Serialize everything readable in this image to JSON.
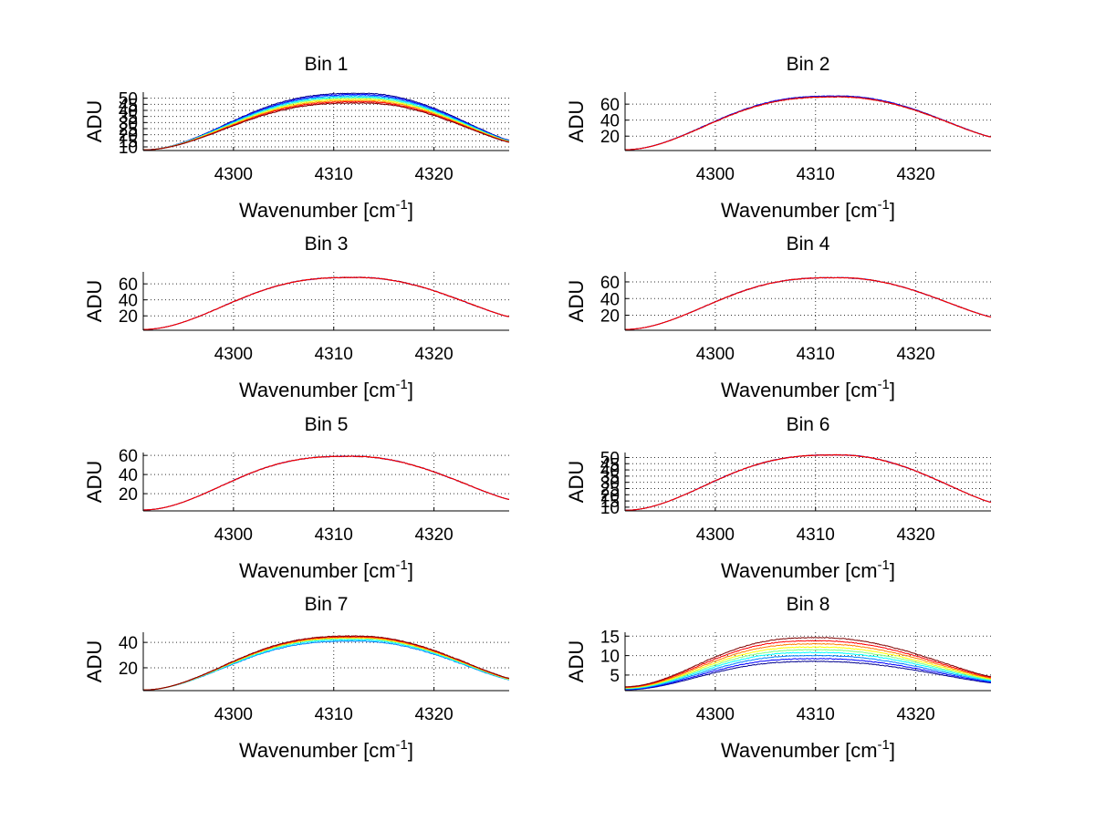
{
  "chart_data": [
    {
      "type": "line",
      "title": "Bin 1",
      "xlabel": "Wavenumber [cm",
      "xlabel_sup": "-1",
      "xlabel_end": "]",
      "ylabel": "ADU",
      "xlim": [
        4291,
        4327.5
      ],
      "ylim": [
        7,
        55
      ],
      "xticks": [
        "4300",
        "4310",
        "4320"
      ],
      "yticks": [
        "10",
        "15",
        "20",
        "25",
        "30",
        "35",
        "40",
        "45",
        "50"
      ],
      "grid": true,
      "series_colors": [
        "#00008f",
        "#0000ff",
        "#0080ff",
        "#00ffff",
        "#80ff80",
        "#ffff00",
        "#ff8000",
        "#ff0000",
        "#800000"
      ],
      "series": [
        {
          "peak_x": 4313.0,
          "peak_y": 54,
          "base_y": 7.5,
          "right_y": 15.5
        },
        {
          "peak_x": 4313.0,
          "peak_y": 53,
          "base_y": 7.5,
          "right_y": 15.2
        },
        {
          "peak_x": 4313.0,
          "peak_y": 52,
          "base_y": 7.5,
          "right_y": 15.0
        },
        {
          "peak_x": 4313.0,
          "peak_y": 51,
          "base_y": 7.5,
          "right_y": 14.8
        },
        {
          "peak_x": 4313.0,
          "peak_y": 50,
          "base_y": 7.5,
          "right_y": 14.6
        },
        {
          "peak_x": 4313.0,
          "peak_y": 49,
          "base_y": 7.5,
          "right_y": 14.4
        },
        {
          "peak_x": 4313.0,
          "peak_y": 48,
          "base_y": 7.5,
          "right_y": 14.2
        },
        {
          "peak_x": 4313.0,
          "peak_y": 47,
          "base_y": 7.5,
          "right_y": 14.0
        },
        {
          "peak_x": 4313.0,
          "peak_y": 46,
          "base_y": 7.5,
          "right_y": 13.8
        }
      ]
    },
    {
      "type": "line",
      "title": "Bin 2",
      "xlabel": "Wavenumber [cm",
      "xlabel_sup": "-1",
      "xlabel_end": "]",
      "ylabel": "ADU",
      "xlim": [
        4291,
        4327.5
      ],
      "ylim": [
        2,
        75
      ],
      "xticks": [
        "4300",
        "4310",
        "4320"
      ],
      "yticks": [
        "20",
        "40",
        "60"
      ],
      "grid": true,
      "series_colors": [
        "#00008f",
        "#0000ff",
        "#800000",
        "#ff0000"
      ],
      "series": [
        {
          "peak_x": 4312.5,
          "peak_y": 70,
          "base_y": 3,
          "right_y": 19
        },
        {
          "peak_x": 4312.5,
          "peak_y": 70,
          "base_y": 3,
          "right_y": 19
        },
        {
          "peak_x": 4312.5,
          "peak_y": 69,
          "base_y": 3,
          "right_y": 19
        },
        {
          "peak_x": 4312.5,
          "peak_y": 69,
          "base_y": 3,
          "right_y": 19
        }
      ]
    },
    {
      "type": "line",
      "title": "Bin 3",
      "xlabel": "Wavenumber [cm",
      "xlabel_sup": "-1",
      "xlabel_end": "]",
      "ylabel": "ADU",
      "xlim": [
        4291,
        4327.5
      ],
      "ylim": [
        2,
        75
      ],
      "xticks": [
        "4300",
        "4310",
        "4320"
      ],
      "yticks": [
        "20",
        "40",
        "60"
      ],
      "grid": true,
      "series_colors": [
        "#0000ff",
        "#800000",
        "#ff0000"
      ],
      "series": [
        {
          "peak_x": 4312.5,
          "peak_y": 68,
          "base_y": 3,
          "right_y": 19
        },
        {
          "peak_x": 4312.5,
          "peak_y": 68,
          "base_y": 3,
          "right_y": 19
        },
        {
          "peak_x": 4312.5,
          "peak_y": 68,
          "base_y": 3,
          "right_y": 19
        }
      ]
    },
    {
      "type": "line",
      "title": "Bin 4",
      "xlabel": "Wavenumber [cm",
      "xlabel_sup": "-1",
      "xlabel_end": "]",
      "ylabel": "ADU",
      "xlim": [
        4291,
        4327.5
      ],
      "ylim": [
        2,
        72
      ],
      "xticks": [
        "4300",
        "4310",
        "4320"
      ],
      "yticks": [
        "20",
        "40",
        "60"
      ],
      "grid": true,
      "series_colors": [
        "#0000ff",
        "#800000",
        "#ff0000"
      ],
      "series": [
        {
          "peak_x": 4312.5,
          "peak_y": 65,
          "base_y": 3,
          "right_y": 18
        },
        {
          "peak_x": 4312.5,
          "peak_y": 65,
          "base_y": 3,
          "right_y": 18
        },
        {
          "peak_x": 4312.5,
          "peak_y": 65,
          "base_y": 3,
          "right_y": 18
        }
      ]
    },
    {
      "type": "line",
      "title": "Bin 5",
      "xlabel": "Wavenumber [cm",
      "xlabel_sup": "-1",
      "xlabel_end": "]",
      "ylabel": "ADU",
      "xlim": [
        4291,
        4327.5
      ],
      "ylim": [
        2,
        63
      ],
      "xticks": [
        "4300",
        "4310",
        "4320"
      ],
      "yticks": [
        "20",
        "40",
        "60"
      ],
      "grid": true,
      "series_colors": [
        "#0000ff",
        "#800000",
        "#ff0000"
      ],
      "series": [
        {
          "peak_x": 4312.0,
          "peak_y": 59,
          "base_y": 3,
          "right_y": 14
        },
        {
          "peak_x": 4312.0,
          "peak_y": 59,
          "base_y": 3,
          "right_y": 14
        },
        {
          "peak_x": 4312.0,
          "peak_y": 59,
          "base_y": 3,
          "right_y": 14
        }
      ]
    },
    {
      "type": "line",
      "title": "Bin 6",
      "xlabel": "Wavenumber [cm",
      "xlabel_sup": "-1",
      "xlabel_end": "]",
      "ylabel": "ADU",
      "xlim": [
        4291,
        4327.5
      ],
      "ylim": [
        7,
        54
      ],
      "xticks": [
        "4300",
        "4310",
        "4320"
      ],
      "yticks": [
        "10",
        "15",
        "20",
        "25",
        "30",
        "35",
        "40",
        "45",
        "50"
      ],
      "grid": true,
      "series_colors": [
        "#0000ff",
        "#800000",
        "#ff0000"
      ],
      "series": [
        {
          "peak_x": 4312.5,
          "peak_y": 52,
          "base_y": 7.5,
          "right_y": 14
        },
        {
          "peak_x": 4312.5,
          "peak_y": 52,
          "base_y": 7.5,
          "right_y": 14
        },
        {
          "peak_x": 4312.5,
          "peak_y": 52,
          "base_y": 7.5,
          "right_y": 14
        }
      ]
    },
    {
      "type": "line",
      "title": "Bin 7",
      "xlabel": "Wavenumber [cm",
      "xlabel_sup": "-1",
      "xlabel_end": "]",
      "ylabel": "ADU",
      "xlim": [
        4291,
        4327.5
      ],
      "ylim": [
        2,
        48
      ],
      "xticks": [
        "4300",
        "4310",
        "4320"
      ],
      "yticks": [
        "20",
        "40"
      ],
      "grid": true,
      "series_colors": [
        "#0080ff",
        "#00ffff",
        "#80ff80",
        "#ffff00",
        "#ff8000",
        "#ff0000",
        "#800000"
      ],
      "series": [
        {
          "peak_x": 4312.5,
          "peak_y": 41,
          "base_y": 2.5,
          "right_y": 10.5
        },
        {
          "peak_x": 4312.5,
          "peak_y": 42,
          "base_y": 2.5,
          "right_y": 10.8
        },
        {
          "peak_x": 4312.5,
          "peak_y": 43,
          "base_y": 2.5,
          "right_y": 11.0
        },
        {
          "peak_x": 4312.5,
          "peak_y": 43.5,
          "base_y": 2.5,
          "right_y": 11.2
        },
        {
          "peak_x": 4312.5,
          "peak_y": 44,
          "base_y": 2.5,
          "right_y": 11.4
        },
        {
          "peak_x": 4312.5,
          "peak_y": 44.5,
          "base_y": 2.5,
          "right_y": 11.6
        },
        {
          "peak_x": 4312.5,
          "peak_y": 45,
          "base_y": 2.5,
          "right_y": 11.8
        }
      ]
    },
    {
      "type": "line",
      "title": "Bin 8",
      "xlabel": "Wavenumber [cm",
      "xlabel_sup": "-1",
      "xlabel_end": "]",
      "ylabel": "ADU",
      "xlim": [
        4291,
        4327.5
      ],
      "ylim": [
        1,
        16
      ],
      "xticks": [
        "4300",
        "4310",
        "4320"
      ],
      "yticks": [
        "5",
        "10",
        "15"
      ],
      "grid": true,
      "series_colors": [
        "#00008f",
        "#0000ff",
        "#0080ff",
        "#00ffff",
        "#80ff80",
        "#ffff00",
        "#ff8000",
        "#ff0000",
        "#800000"
      ],
      "series": [
        {
          "peak_x": 4310.5,
          "peak_y": 8.5,
          "base_y": 1.2,
          "right_y": 3.0
        },
        {
          "peak_x": 4310.5,
          "peak_y": 9.2,
          "base_y": 1.3,
          "right_y": 3.2
        },
        {
          "peak_x": 4310.5,
          "peak_y": 10.0,
          "base_y": 1.4,
          "right_y": 3.4
        },
        {
          "peak_x": 4310.5,
          "peak_y": 10.8,
          "base_y": 1.5,
          "right_y": 3.6
        },
        {
          "peak_x": 4310.5,
          "peak_y": 11.5,
          "base_y": 1.6,
          "right_y": 3.8
        },
        {
          "peak_x": 4310.5,
          "peak_y": 12.2,
          "base_y": 1.7,
          "right_y": 4.0
        },
        {
          "peak_x": 4310.5,
          "peak_y": 13.0,
          "base_y": 1.8,
          "right_y": 4.2
        },
        {
          "peak_x": 4310.5,
          "peak_y": 13.8,
          "base_y": 1.9,
          "right_y": 4.4
        },
        {
          "peak_x": 4310.5,
          "peak_y": 14.6,
          "base_y": 2.0,
          "right_y": 4.6
        }
      ]
    }
  ]
}
